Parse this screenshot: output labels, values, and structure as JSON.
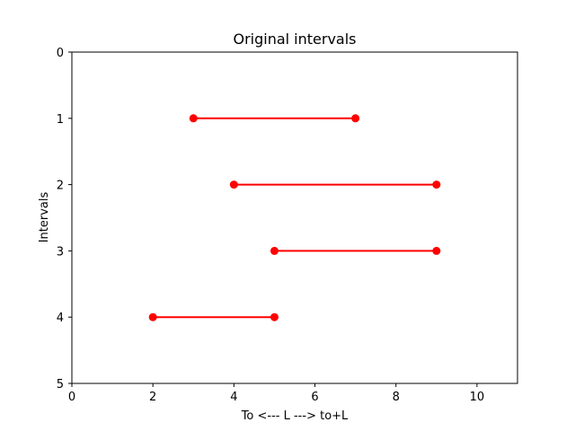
{
  "chart_data": {
    "type": "line",
    "title": "Original intervals",
    "xlabel": "To <--- L ---> to+L",
    "ylabel": "Intervals",
    "xlim": [
      0,
      11
    ],
    "ylim": [
      5,
      0
    ],
    "y_inverted": true,
    "xticks": [
      "0",
      "2",
      "4",
      "6",
      "8",
      "10"
    ],
    "xtick_values": [
      0,
      2,
      4,
      6,
      8,
      10
    ],
    "yticks": [
      "0",
      "1",
      "2",
      "3",
      "4",
      "5"
    ],
    "ytick_values": [
      0,
      1,
      2,
      3,
      4,
      5
    ],
    "grid": false,
    "series": [
      {
        "y": 1,
        "x": [
          3,
          7
        ]
      },
      {
        "y": 2,
        "x": [
          4,
          9
        ]
      },
      {
        "y": 3,
        "x": [
          5,
          9
        ]
      },
      {
        "y": 4,
        "x": [
          2,
          5
        ]
      }
    ],
    "colors": {
      "interval": "#ff0000",
      "axis": "#000000",
      "background": "#ffffff"
    }
  }
}
